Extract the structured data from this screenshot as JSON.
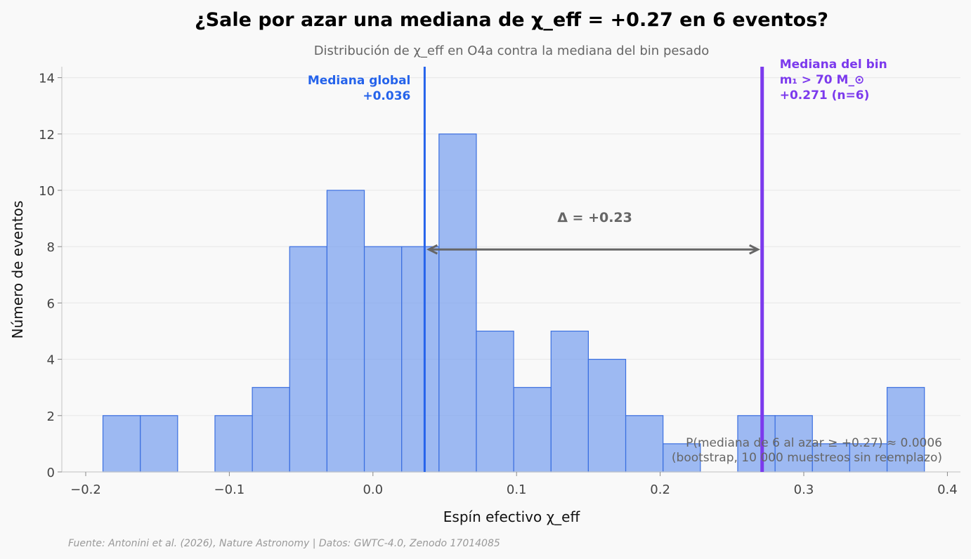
{
  "chart_data": {
    "type": "bar",
    "title": "¿Sale por azar una mediana de χ_eff = +0.27 en 6 eventos?",
    "subtitle": "Distribución de χ_eff en O4a contra la mediana del bin pesado",
    "xlabel": "Espín efectivo χ_eff",
    "ylabel": "Número de eventos",
    "xlim": [
      -0.216,
      0.41
    ],
    "ylim": [
      0,
      14.4
    ],
    "grid": "horizontal",
    "x_ticks": [
      -0.2,
      -0.1,
      0.0,
      0.1,
      0.2,
      0.3,
      0.4
    ],
    "x_tick_labels": [
      "−0.2",
      "−0.1",
      "0.0",
      "0.1",
      "0.2",
      "0.3",
      "0.4"
    ],
    "y_ticks": [
      0,
      2,
      4,
      6,
      8,
      10,
      12,
      14
    ],
    "y_tick_labels": [
      "0",
      "2",
      "4",
      "6",
      "8",
      "10",
      "12",
      "14"
    ],
    "bar_color": "#7ea3ef",
    "bar_edge_color": "#3b6fe0",
    "bins": [
      {
        "x0": -0.188,
        "x1": -0.162,
        "count": 2
      },
      {
        "x0": -0.162,
        "x1": -0.136,
        "count": 2
      },
      {
        "x0": -0.136,
        "x1": -0.11,
        "count": 0
      },
      {
        "x0": -0.11,
        "x1": -0.084,
        "count": 2
      },
      {
        "x0": -0.084,
        "x1": -0.058,
        "count": 3
      },
      {
        "x0": -0.058,
        "x1": -0.032,
        "count": 8
      },
      {
        "x0": -0.032,
        "x1": -0.006,
        "count": 10
      },
      {
        "x0": -0.006,
        "x1": 0.02,
        "count": 8
      },
      {
        "x0": 0.02,
        "x1": 0.046,
        "count": 8
      },
      {
        "x0": 0.046,
        "x1": 0.072,
        "count": 12
      },
      {
        "x0": 0.072,
        "x1": 0.098,
        "count": 5
      },
      {
        "x0": 0.098,
        "x1": 0.124,
        "count": 3
      },
      {
        "x0": 0.124,
        "x1": 0.15,
        "count": 5
      },
      {
        "x0": 0.15,
        "x1": 0.176,
        "count": 4
      },
      {
        "x0": 0.176,
        "x1": 0.202,
        "count": 2
      },
      {
        "x0": 0.202,
        "x1": 0.228,
        "count": 1
      },
      {
        "x0": 0.228,
        "x1": 0.254,
        "count": 0
      },
      {
        "x0": 0.254,
        "x1": 0.28,
        "count": 2
      },
      {
        "x0": 0.28,
        "x1": 0.306,
        "count": 2
      },
      {
        "x0": 0.306,
        "x1": 0.332,
        "count": 1
      },
      {
        "x0": 0.332,
        "x1": 0.358,
        "count": 1
      },
      {
        "x0": 0.358,
        "x1": 0.384,
        "count": 3
      }
    ],
    "vlines": [
      {
        "x": 0.036,
        "color": "#2563eb",
        "label_lines": [
          "Mediana global",
          "+0.036"
        ]
      },
      {
        "x": 0.271,
        "color": "#7c3aed",
        "label_lines": [
          "Mediana del bin",
          "m₁ > 70 M_⊙",
          "+0.271 (n=6)"
        ]
      }
    ],
    "delta_arrow": {
      "x_from": 0.036,
      "x_to": 0.271,
      "y": 7.9,
      "label": "Δ = +0.23",
      "color": "#666666"
    },
    "annotation_lines": [
      "P(mediana de 6 al azar ≥ +0.27) ≈ 0.0006",
      "(bootstrap, 10 000 muestreos sin reemplazo)"
    ],
    "source": "Fuente: Antonini et al. (2026), Nature Astronomy | Datos: GWTC-4.0, Zenodo 17014085"
  }
}
